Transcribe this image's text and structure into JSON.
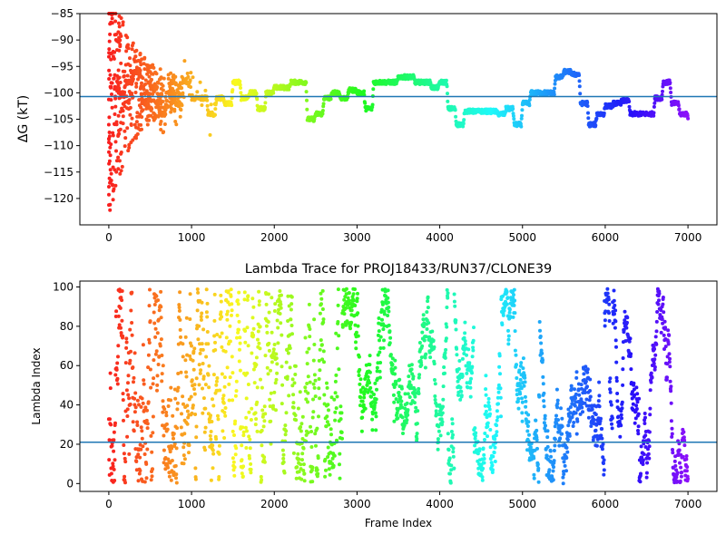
{
  "chart_data": [
    {
      "type": "scatter",
      "title": "",
      "xlabel": "",
      "ylabel": "ΔG (kT)",
      "xlim": [
        -350,
        7350
      ],
      "ylim": [
        -125,
        -85
      ],
      "xticks": [
        0,
        1000,
        2000,
        3000,
        4000,
        5000,
        6000,
        7000
      ],
      "yticks": [
        -120,
        -115,
        -110,
        -105,
        -100,
        -95,
        -90,
        -85
      ],
      "reference_line": -100.7,
      "colormap": "rainbow (red at frame 0 → violet at frame 7000)",
      "trace_anchors": [
        [
          100,
          -100
        ],
        [
          200,
          -98
        ],
        [
          300,
          -96
        ],
        [
          400,
          -102
        ],
        [
          500,
          -99
        ],
        [
          600,
          -104
        ],
        [
          700,
          -100
        ],
        [
          800,
          -102
        ],
        [
          900,
          -98
        ],
        [
          1000,
          -101
        ],
        [
          1100,
          -101
        ],
        [
          1200,
          -104
        ],
        [
          1300,
          -101
        ],
        [
          1400,
          -102
        ],
        [
          1500,
          -98
        ],
        [
          1600,
          -101
        ],
        [
          1700,
          -100
        ],
        [
          1800,
          -103
        ],
        [
          1900,
          -100
        ],
        [
          2000,
          -99
        ],
        [
          2100,
          -99
        ],
        [
          2200,
          -98
        ],
        [
          2300,
          -98
        ],
        [
          2400,
          -105
        ],
        [
          2500,
          -104
        ],
        [
          2600,
          -101
        ],
        [
          2700,
          -100
        ],
        [
          2800,
          -101
        ],
        [
          2900,
          -99.5
        ],
        [
          3000,
          -100
        ],
        [
          3100,
          -103
        ],
        [
          3200,
          -98
        ],
        [
          3300,
          -98
        ],
        [
          3400,
          -98
        ],
        [
          3500,
          -97
        ],
        [
          3600,
          -97
        ],
        [
          3700,
          -98
        ],
        [
          3800,
          -98
        ],
        [
          3900,
          -99
        ],
        [
          4000,
          -98
        ],
        [
          4100,
          -103
        ],
        [
          4200,
          -106
        ],
        [
          4300,
          -103.5
        ],
        [
          4400,
          -103.5
        ],
        [
          4500,
          -103.5
        ],
        [
          4600,
          -103.5
        ],
        [
          4700,
          -104
        ],
        [
          4800,
          -103
        ],
        [
          4900,
          -106
        ],
        [
          5000,
          -102
        ],
        [
          5100,
          -100
        ],
        [
          5200,
          -100
        ],
        [
          5300,
          -100
        ],
        [
          5400,
          -97
        ],
        [
          5500,
          -96
        ],
        [
          5600,
          -96.5
        ],
        [
          5700,
          -102
        ],
        [
          5800,
          -106
        ],
        [
          5900,
          -104
        ],
        [
          6000,
          -102.5
        ],
        [
          6100,
          -102
        ],
        [
          6200,
          -101.5
        ],
        [
          6300,
          -104
        ],
        [
          6400,
          -104
        ],
        [
          6500,
          -104
        ],
        [
          6600,
          -101
        ],
        [
          6700,
          -98
        ],
        [
          6800,
          -102
        ],
        [
          6900,
          -104
        ],
        [
          7000,
          -104.5
        ]
      ]
    },
    {
      "type": "scatter",
      "title": "Lambda Trace for PROJ18433/RUN37/CLONE39",
      "xlabel": "Frame Index",
      "ylabel": "Lambda Index",
      "xlim": [
        -350,
        7350
      ],
      "ylim": [
        -4,
        103
      ],
      "xticks": [
        0,
        1000,
        2000,
        3000,
        4000,
        5000,
        6000,
        7000
      ],
      "yticks": [
        0,
        20,
        40,
        60,
        80,
        100
      ],
      "reference_line": 21,
      "colormap": "rainbow (red at frame 0 → violet at frame 7000)",
      "lambda_range": [
        0,
        99
      ],
      "frame_range": [
        0,
        7000
      ]
    }
  ]
}
